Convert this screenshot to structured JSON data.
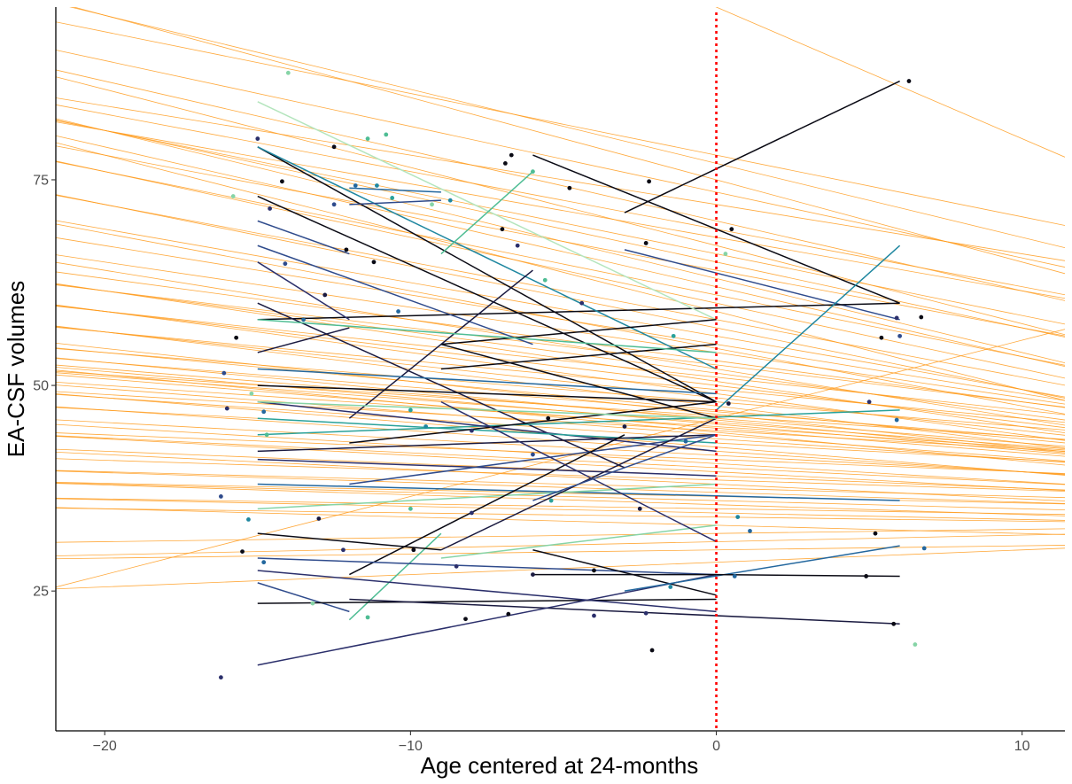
{
  "chart_data": {
    "type": "line",
    "title": "",
    "xlabel": "Age centered at 24-months",
    "ylabel": "EA-CSF volumes",
    "xlim": [
      -21.6,
      11.4
    ],
    "ylim": [
      8,
      96
    ],
    "x_ticks": [
      -20,
      -10,
      0,
      10
    ],
    "x_tick_labels": [
      "−20",
      "−10",
      "0",
      "10"
    ],
    "y_ticks": [
      25,
      50,
      75
    ],
    "y_tick_labels": [
      "25",
      "50",
      "75"
    ],
    "grid": false,
    "legend": "none",
    "reference_line": {
      "x": 0,
      "color": "#ff0000",
      "style": "dotted"
    },
    "colors": {
      "population_lines": "#ff9a1a",
      "reference_line": "#ff0000",
      "axis": "#000000",
      "individual_palette": [
        "#0a0a14",
        "#1a1a40",
        "#2b2f6b",
        "#2f4b8c",
        "#23679e",
        "#1f87a0",
        "#2aa29a",
        "#4fbd94",
        "#86d4a6",
        "#b4e5bd"
      ]
    },
    "population_lines": [
      {
        "intercept": 96.0,
        "slope": -1.6
      },
      {
        "intercept": 77.0,
        "slope": -0.9
      },
      {
        "intercept": 78.0,
        "slope": -0.75
      },
      {
        "intercept": 75.0,
        "slope": -1.0
      },
      {
        "intercept": 73.5,
        "slope": -0.8
      },
      {
        "intercept": 72.0,
        "slope": -0.6
      },
      {
        "intercept": 70.0,
        "slope": -0.85
      },
      {
        "intercept": 69.0,
        "slope": -0.7
      },
      {
        "intercept": 68.0,
        "slope": -0.65
      },
      {
        "intercept": 67.0,
        "slope": -0.95
      },
      {
        "intercept": 66.0,
        "slope": -0.75
      },
      {
        "intercept": 65.0,
        "slope": -0.8
      },
      {
        "intercept": 64.0,
        "slope": -0.7
      },
      {
        "intercept": 63.0,
        "slope": -0.9
      },
      {
        "intercept": 62.0,
        "slope": -0.85
      },
      {
        "intercept": 61.0,
        "slope": -0.75
      },
      {
        "intercept": 60.0,
        "slope": -0.8
      },
      {
        "intercept": 59.0,
        "slope": -0.95
      },
      {
        "intercept": 58.0,
        "slope": -0.7
      },
      {
        "intercept": 57.0,
        "slope": -0.75
      },
      {
        "intercept": 56.0,
        "slope": -0.65
      },
      {
        "intercept": 55.0,
        "slope": -0.6
      },
      {
        "intercept": 54.5,
        "slope": -0.7
      },
      {
        "intercept": 54.0,
        "slope": -0.55
      },
      {
        "intercept": 53.0,
        "slope": -0.5
      },
      {
        "intercept": 52.5,
        "slope": -0.45
      },
      {
        "intercept": 52.0,
        "slope": -0.6
      },
      {
        "intercept": 51.5,
        "slope": -0.5
      },
      {
        "intercept": 51.0,
        "slope": -0.4
      },
      {
        "intercept": 50.5,
        "slope": -0.55
      },
      {
        "intercept": 50.0,
        "slope": -0.45
      },
      {
        "intercept": 49.5,
        "slope": -0.35
      },
      {
        "intercept": 49.0,
        "slope": -0.5
      },
      {
        "intercept": 48.5,
        "slope": -0.4
      },
      {
        "intercept": 48.0,
        "slope": -0.3
      },
      {
        "intercept": 47.5,
        "slope": -0.45
      },
      {
        "intercept": 47.0,
        "slope": -0.35
      },
      {
        "intercept": 46.8,
        "slope": -0.3
      },
      {
        "intercept": 46.5,
        "slope": -0.4
      },
      {
        "intercept": 46.3,
        "slope": -0.25
      },
      {
        "intercept": 46.0,
        "slope": -0.3
      },
      {
        "intercept": 45.8,
        "slope": -0.35
      },
      {
        "intercept": 45.5,
        "slope": -0.28
      },
      {
        "intercept": 45.3,
        "slope": -0.32
      },
      {
        "intercept": 45.0,
        "slope": -0.25
      },
      {
        "intercept": 44.8,
        "slope": -0.3
      },
      {
        "intercept": 44.5,
        "slope": -0.22
      },
      {
        "intercept": 44.3,
        "slope": -0.35
      },
      {
        "intercept": 44.0,
        "slope": -0.28
      },
      {
        "intercept": 43.5,
        "slope": -0.25
      },
      {
        "intercept": 43.0,
        "slope": -0.2
      },
      {
        "intercept": 42.5,
        "slope": -0.3
      },
      {
        "intercept": 42.0,
        "slope": -0.25
      },
      {
        "intercept": 41.5,
        "slope": -0.2
      },
      {
        "intercept": 41.0,
        "slope": -0.15
      },
      {
        "intercept": 40.5,
        "slope": -0.22
      },
      {
        "intercept": 40.0,
        "slope": -0.18
      },
      {
        "intercept": 39.5,
        "slope": -0.2
      },
      {
        "intercept": 39.0,
        "slope": -0.15
      },
      {
        "intercept": 38.5,
        "slope": -0.12
      },
      {
        "intercept": 38.0,
        "slope": -0.18
      },
      {
        "intercept": 37.5,
        "slope": -0.1
      },
      {
        "intercept": 37.0,
        "slope": -0.12
      },
      {
        "intercept": 36.5,
        "slope": -0.08
      },
      {
        "intercept": 36.0,
        "slope": -0.1
      },
      {
        "intercept": 35.5,
        "slope": -0.12
      },
      {
        "intercept": 35.0,
        "slope": -0.06
      },
      {
        "intercept": 34.5,
        "slope": -0.08
      },
      {
        "intercept": 34.0,
        "slope": -0.05
      },
      {
        "intercept": 33.0,
        "slope": -0.1
      },
      {
        "intercept": 32.0,
        "slope": 0.05
      },
      {
        "intercept": 31.0,
        "slope": 0.08
      },
      {
        "intercept": 30.0,
        "slope": 0.05
      },
      {
        "intercept": 28.5,
        "slope": 0.15
      },
      {
        "intercept": 46.0,
        "slope": 0.95
      }
    ],
    "individual_lines": [
      {
        "x": [
          -3,
          6
        ],
        "y": [
          71,
          87
        ],
        "color": 0
      },
      {
        "x": [
          -6,
          6
        ],
        "y": [
          78,
          60
        ],
        "color": 0
      },
      {
        "x": [
          -3,
          6
        ],
        "y": [
          66.5,
          58
        ],
        "color": 3
      },
      {
        "x": [
          -15,
          6
        ],
        "y": [
          58,
          60
        ],
        "color": 0
      },
      {
        "x": [
          -15,
          0
        ],
        "y": [
          79,
          48
        ],
        "color": 0
      },
      {
        "x": [
          -15,
          0
        ],
        "y": [
          79,
          52
        ],
        "color": 5
      },
      {
        "x": [
          -15,
          0
        ],
        "y": [
          84.5,
          58
        ],
        "color": 9
      },
      {
        "x": [
          -12,
          -9
        ],
        "y": [
          74,
          73.5
        ],
        "color": 4
      },
      {
        "x": [
          -12,
          -9
        ],
        "y": [
          72,
          72.5
        ],
        "color": 3
      },
      {
        "x": [
          -9,
          -6
        ],
        "y": [
          66,
          76
        ],
        "color": 7
      },
      {
        "x": [
          -15,
          -12
        ],
        "y": [
          70,
          66
        ],
        "color": 3
      },
      {
        "x": [
          -15,
          0
        ],
        "y": [
          73,
          48
        ],
        "color": 0
      },
      {
        "x": [
          -15,
          -6
        ],
        "y": [
          67,
          55
        ],
        "color": 3
      },
      {
        "x": [
          -15,
          -12
        ],
        "y": [
          65,
          58
        ],
        "color": 2
      },
      {
        "x": [
          -15,
          -3
        ],
        "y": [
          60,
          40
        ],
        "color": 1
      },
      {
        "x": [
          -9,
          0
        ],
        "y": [
          55,
          58
        ],
        "color": 0
      },
      {
        "x": [
          -9,
          0
        ],
        "y": [
          52,
          55
        ],
        "color": 0
      },
      {
        "x": [
          -15,
          -12
        ],
        "y": [
          54,
          57
        ],
        "color": 1
      },
      {
        "x": [
          -12,
          -6
        ],
        "y": [
          46,
          64
        ],
        "color": 1
      },
      {
        "x": [
          -15,
          0
        ],
        "y": [
          52,
          49
        ],
        "color": 4
      },
      {
        "x": [
          -15,
          6
        ],
        "y": [
          44,
          47
        ],
        "color": 6
      },
      {
        "x": [
          -15,
          0
        ],
        "y": [
          58,
          54
        ],
        "color": 7
      },
      {
        "x": [
          -9,
          0
        ],
        "y": [
          55,
          46
        ],
        "color": 0
      },
      {
        "x": [
          -15,
          0
        ],
        "y": [
          50,
          48
        ],
        "color": 0
      },
      {
        "x": [
          -15,
          0
        ],
        "y": [
          48,
          42
        ],
        "color": 2
      },
      {
        "x": [
          -15,
          0
        ],
        "y": [
          46,
          43
        ],
        "color": 6
      },
      {
        "x": [
          -12,
          0
        ],
        "y": [
          43,
          48
        ],
        "color": 0
      },
      {
        "x": [
          -15,
          0
        ],
        "y": [
          42,
          44
        ],
        "color": 1
      },
      {
        "x": [
          -15,
          0
        ],
        "y": [
          41,
          39
        ],
        "color": 2
      },
      {
        "x": [
          -12,
          0
        ],
        "y": [
          38,
          44
        ],
        "color": 3
      },
      {
        "x": [
          -15,
          6
        ],
        "y": [
          38,
          36
        ],
        "color": 4
      },
      {
        "x": [
          -15,
          0
        ],
        "y": [
          35,
          38
        ],
        "color": 8
      },
      {
        "x": [
          -9,
          0
        ],
        "y": [
          30,
          46
        ],
        "color": 1
      },
      {
        "x": [
          -12,
          -3
        ],
        "y": [
          27,
          44
        ],
        "color": 0
      },
      {
        "x": [
          -12,
          -9
        ],
        "y": [
          21.5,
          32
        ],
        "color": 7
      },
      {
        "x": [
          -15,
          -12
        ],
        "y": [
          26,
          22.5
        ],
        "color": 3
      },
      {
        "x": [
          -15,
          0
        ],
        "y": [
          29,
          27
        ],
        "color": 3
      },
      {
        "x": [
          -6,
          0
        ],
        "y": [
          30,
          24.5
        ],
        "color": 0
      },
      {
        "x": [
          -15,
          -9
        ],
        "y": [
          32,
          30
        ],
        "color": 0
      },
      {
        "x": [
          -15,
          0
        ],
        "y": [
          23.5,
          24
        ],
        "color": 0
      },
      {
        "x": [
          -15,
          0
        ],
        "y": [
          27.5,
          22.5
        ],
        "color": 2
      },
      {
        "x": [
          -12,
          6
        ],
        "y": [
          24,
          21
        ],
        "color": 1
      },
      {
        "x": [
          -15,
          0
        ],
        "y": [
          16,
          27
        ],
        "color": 2
      },
      {
        "x": [
          -3,
          6
        ],
        "y": [
          25,
          30.5
        ],
        "color": 4
      },
      {
        "x": [
          -9,
          0
        ],
        "y": [
          29,
          33
        ],
        "color": 8
      },
      {
        "x": [
          0,
          6
        ],
        "y": [
          47,
          67
        ],
        "color": 5
      },
      {
        "x": [
          -6,
          0
        ],
        "y": [
          27,
          27
        ],
        "color": 0
      },
      {
        "x": [
          0,
          6
        ],
        "y": [
          27,
          26.8
        ],
        "color": 0
      },
      {
        "x": [
          -15,
          0
        ],
        "y": [
          48,
          46
        ],
        "color": 8
      },
      {
        "x": [
          -9,
          0
        ],
        "y": [
          48,
          31
        ],
        "color": 2
      },
      {
        "x": [
          -6,
          0
        ],
        "y": [
          36,
          44
        ],
        "color": 3
      }
    ],
    "points": [
      [
        -16.2,
        14.5,
        2
      ],
      [
        -14,
        88,
        8
      ],
      [
        -15,
        80,
        2
      ],
      [
        -11.4,
        80,
        7
      ],
      [
        -10.8,
        80.5,
        7
      ],
      [
        -12.5,
        79,
        0
      ],
      [
        -6.7,
        78,
        0
      ],
      [
        -6.9,
        77,
        0
      ],
      [
        -6.0,
        76,
        7
      ],
      [
        -4.8,
        74,
        0
      ],
      [
        -2.2,
        74.8,
        0
      ],
      [
        6.3,
        87,
        0
      ],
      [
        -14.2,
        74.8,
        0
      ],
      [
        -11.8,
        74.3,
        4
      ],
      [
        -11.1,
        74.3,
        5
      ],
      [
        -10.6,
        72.8,
        6
      ],
      [
        -9.3,
        72.0,
        8
      ],
      [
        -8.7,
        72.5,
        5
      ],
      [
        -12.5,
        72,
        3
      ],
      [
        -14.6,
        71.5,
        2
      ],
      [
        -15.8,
        73,
        8
      ],
      [
        0.5,
        69,
        0
      ],
      [
        -7,
        69,
        0
      ],
      [
        -2.3,
        67.3,
        0
      ],
      [
        -6.5,
        67,
        2
      ],
      [
        -12.1,
        66.5,
        0
      ],
      [
        -11.2,
        65,
        0
      ],
      [
        -14.1,
        64.8,
        3
      ],
      [
        -5.6,
        62.8,
        7
      ],
      [
        -12.8,
        61,
        1
      ],
      [
        -4.4,
        60,
        2
      ],
      [
        -10.4,
        59,
        4
      ],
      [
        6.7,
        58.3,
        0
      ],
      [
        5.9,
        58.2,
        2
      ],
      [
        -13.5,
        58,
        4
      ],
      [
        -15.7,
        55.8,
        0
      ],
      [
        5.4,
        55.8,
        0
      ],
      [
        6.0,
        56.0,
        3
      ],
      [
        0.3,
        66.0,
        8
      ],
      [
        -1.4,
        56.0,
        6
      ],
      [
        -16.0,
        47.2,
        2
      ],
      [
        -16.1,
        51.5,
        3
      ],
      [
        -14.8,
        46.8,
        4
      ],
      [
        -15.2,
        49.0,
        8
      ],
      [
        -14.7,
        44.0,
        7
      ],
      [
        -10.0,
        47.0,
        6
      ],
      [
        -9.5,
        45.0,
        5
      ],
      [
        -8.0,
        44.5,
        2
      ],
      [
        -5.5,
        46.0,
        0
      ],
      [
        -3.0,
        45.0,
        1
      ],
      [
        0.4,
        47.8,
        1
      ],
      [
        -1.0,
        43.2,
        4
      ],
      [
        5.0,
        48.0,
        2
      ],
      [
        5.9,
        45.8,
        4
      ],
      [
        -6.0,
        41.6,
        3
      ],
      [
        -16.2,
        36.5,
        3
      ],
      [
        -15.3,
        33.7,
        5
      ],
      [
        -13.0,
        33.8,
        1
      ],
      [
        -10.0,
        35.0,
        7
      ],
      [
        -8.0,
        34.5,
        2
      ],
      [
        -5.4,
        36.0,
        6
      ],
      [
        -2.5,
        35.0,
        1
      ],
      [
        0.7,
        34.0,
        5
      ],
      [
        1.1,
        32.3,
        4
      ],
      [
        5.2,
        32.0,
        0
      ],
      [
        -15.5,
        29.8,
        0
      ],
      [
        -14.8,
        28.5,
        4
      ],
      [
        -12.2,
        30.0,
        2
      ],
      [
        -9.9,
        30.0,
        0
      ],
      [
        -8.5,
        28.0,
        2
      ],
      [
        -6.0,
        27.0,
        1
      ],
      [
        -4.0,
        27.5,
        0
      ],
      [
        -1.5,
        25.5,
        5
      ],
      [
        0.6,
        26.8,
        4
      ],
      [
        4.9,
        26.8,
        0
      ],
      [
        6.8,
        30.2,
        4
      ],
      [
        -13.2,
        23.5,
        8
      ],
      [
        -11.4,
        21.8,
        7
      ],
      [
        -8.2,
        21.6,
        0
      ],
      [
        -6.8,
        22.2,
        0
      ],
      [
        -4.0,
        22.0,
        2
      ],
      [
        -2.3,
        22.3,
        2
      ],
      [
        -2.1,
        17.8,
        0
      ],
      [
        5.8,
        21.0,
        0
      ],
      [
        6.5,
        18.5,
        8
      ]
    ]
  }
}
